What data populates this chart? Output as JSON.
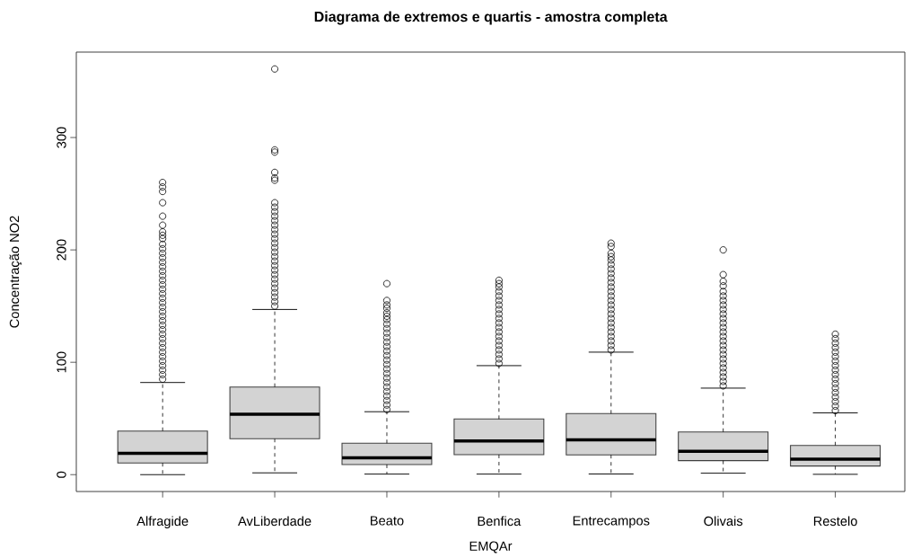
{
  "chart_data": {
    "type": "box",
    "title": "Diagrama de extremos e quartis - amostra completa",
    "xlabel": "EMQAr",
    "ylabel": "Concentração NO2",
    "categories": [
      "Alfragide",
      "AvLiberdade",
      "Beato",
      "Benfica",
      "Entrecampos",
      "Olivais",
      "Restelo"
    ],
    "ylim": [
      -15,
      376
    ],
    "yticks": [
      0,
      100,
      200,
      300
    ],
    "grid": false,
    "marker": "circle",
    "series": [
      {
        "color": "#d3d3d3",
        "boxes": [
          {
            "low": 0,
            "q1": 10.4,
            "median": 18.9,
            "q3": 38.8,
            "high": 82,
            "outliers": [
              85,
              89,
              93,
              97,
              101,
              105,
              109,
              113,
              117,
              121,
              125,
              129,
              133,
              137,
              141,
              145,
              149,
              153,
              157,
              161,
              165,
              169,
              173,
              177,
              181,
              185,
              189,
              193,
              197,
              201,
              205,
              210,
              213,
              216,
              222,
              230,
              242,
              252,
              256,
              260
            ]
          },
          {
            "low": 1.6,
            "q1": 32,
            "median": 53.8,
            "q3": 78,
            "high": 147,
            "outliers": [
              150,
              154,
              158,
              162,
              166,
              170,
              174,
              178,
              182,
              186,
              190,
              194,
              198,
              202,
              206,
              210,
              214,
              218,
              222,
              226,
              230,
              234,
              238,
              242,
              262,
              264,
              269,
              287,
              289,
              361
            ]
          },
          {
            "low": 0.5,
            "q1": 9,
            "median": 14.9,
            "q3": 28,
            "high": 56,
            "outliers": [
              58,
              62,
              66,
              70,
              74,
              78,
              82,
              86,
              90,
              94,
              98,
              102,
              106,
              110,
              114,
              118,
              122,
              126,
              130,
              134,
              138,
              141,
              144,
              148,
              151,
              155,
              170
            ]
          },
          {
            "low": 0.5,
            "q1": 17.8,
            "median": 30,
            "q3": 49.5,
            "high": 97,
            "outliers": [
              99,
              103,
              107,
              111,
              115,
              119,
              123,
              127,
              131,
              135,
              139,
              143,
              147,
              151,
              155,
              159,
              163,
              167,
              170,
              173
            ]
          },
          {
            "low": 0.6,
            "q1": 17.6,
            "median": 31,
            "q3": 54.3,
            "high": 109,
            "outliers": [
              111,
              115,
              119,
              123,
              127,
              131,
              135,
              139,
              143,
              147,
              151,
              155,
              159,
              163,
              167,
              171,
              175,
              179,
              183,
              187,
              191,
              194,
              197,
              203,
              206
            ]
          },
          {
            "low": 1.3,
            "q1": 12.5,
            "median": 20.8,
            "q3": 38,
            "high": 77,
            "outliers": [
              79,
              83,
              87,
              91,
              95,
              99,
              103,
              107,
              111,
              115,
              119,
              123,
              127,
              131,
              135,
              139,
              143,
              147,
              151,
              155,
              159,
              163,
              168,
              172,
              178,
              200
            ]
          },
          {
            "low": 0.3,
            "q1": 7.7,
            "median": 13.8,
            "q3": 26,
            "high": 55,
            "outliers": [
              57,
              61,
              65,
              69,
              73,
              77,
              81,
              85,
              89,
              93,
              97,
              101,
              105,
              109,
              113,
              117,
              121,
              125
            ]
          }
        ]
      }
    ]
  }
}
